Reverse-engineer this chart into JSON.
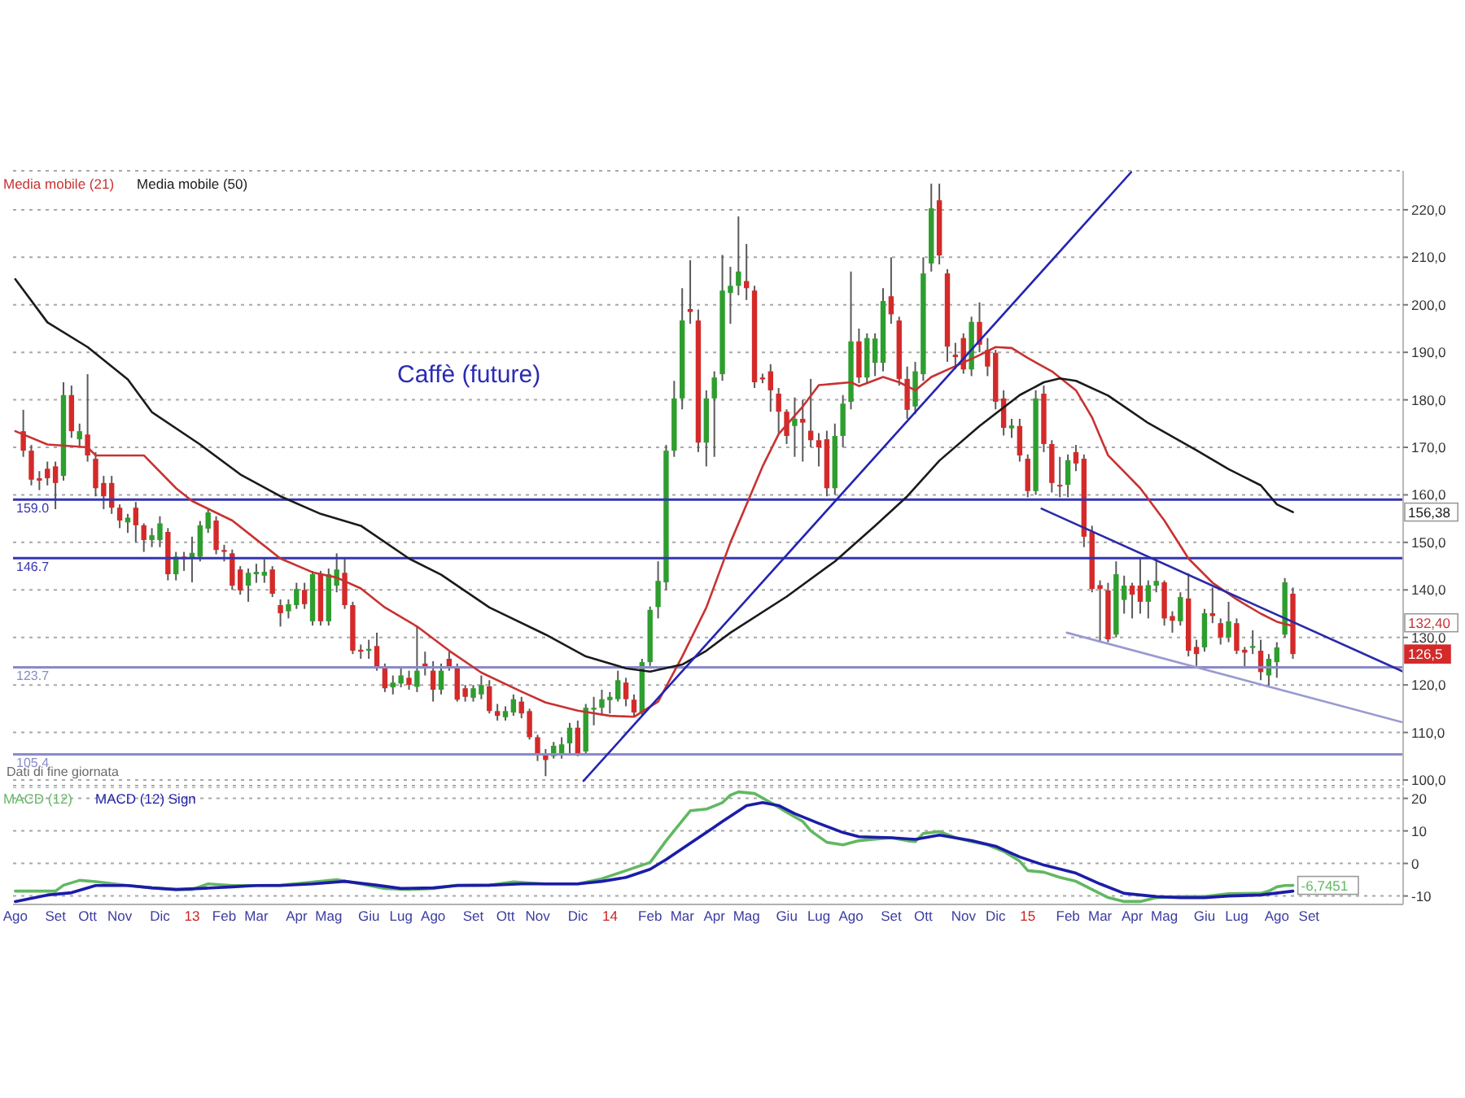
{
  "chart_data": [
    {
      "type": "candlestick",
      "title": "Caffè (future)",
      "x": [
        "2012-08-10",
        "2012-08-17",
        "2012-08-24",
        "2012-08-31",
        "2012-09-07",
        "2012-09-14",
        "2012-09-21",
        "2012-09-28",
        "2012-10-05",
        "2012-10-12",
        "2012-10-19",
        "2012-10-26",
        "2012-11-02",
        "2012-11-09",
        "2012-11-16",
        "2012-11-23",
        "2012-11-30",
        "2012-12-07",
        "2012-12-14",
        "2012-12-21",
        "2012-12-28",
        "2013-01-04",
        "2013-01-11",
        "2013-01-18",
        "2013-01-25",
        "2013-02-01",
        "2013-02-08",
        "2013-02-15",
        "2013-02-22",
        "2013-03-01",
        "2013-03-08",
        "2013-03-15",
        "2013-03-22",
        "2013-03-29",
        "2013-04-05",
        "2013-04-12",
        "2013-04-19",
        "2013-04-26",
        "2013-05-03",
        "2013-05-10",
        "2013-05-17",
        "2013-05-24",
        "2013-05-31",
        "2013-06-07",
        "2013-06-14",
        "2013-06-21",
        "2013-06-28",
        "2013-07-05",
        "2013-07-12",
        "2013-07-19",
        "2013-07-26",
        "2013-08-02",
        "2013-08-09",
        "2013-08-16",
        "2013-08-23",
        "2013-08-30",
        "2013-09-06",
        "2013-09-13",
        "2013-09-20",
        "2013-09-27",
        "2013-10-04",
        "2013-10-11",
        "2013-10-18",
        "2013-10-25",
        "2013-11-01",
        "2013-11-08",
        "2013-11-15",
        "2013-11-22",
        "2013-11-29",
        "2013-12-06",
        "2013-12-13",
        "2013-12-20",
        "2013-12-27",
        "2014-01-03",
        "2014-01-10",
        "2014-01-17",
        "2014-01-24",
        "2014-01-31",
        "2014-02-07",
        "2014-02-14",
        "2014-02-21",
        "2014-02-28",
        "2014-03-07",
        "2014-03-14",
        "2014-03-21",
        "2014-03-28",
        "2014-04-04",
        "2014-04-11",
        "2014-04-18",
        "2014-04-25",
        "2014-05-02",
        "2014-05-09",
        "2014-05-16",
        "2014-05-23",
        "2014-05-30",
        "2014-06-06",
        "2014-06-13",
        "2014-06-20",
        "2014-06-27",
        "2014-07-04",
        "2014-07-11",
        "2014-07-18",
        "2014-07-25",
        "2014-08-01",
        "2014-08-08",
        "2014-08-15",
        "2014-08-22",
        "2014-08-29",
        "2014-09-05",
        "2014-09-12",
        "2014-09-19",
        "2014-09-26",
        "2014-10-03",
        "2014-10-10",
        "2014-10-17",
        "2014-10-24",
        "2014-10-31",
        "2014-11-07",
        "2014-11-14",
        "2014-11-21",
        "2014-11-28",
        "2014-12-05",
        "2014-12-12",
        "2014-12-19",
        "2014-12-26",
        "2015-01-02",
        "2015-01-09",
        "2015-01-16",
        "2015-01-23",
        "2015-01-30",
        "2015-02-06",
        "2015-02-13",
        "2015-02-20",
        "2015-02-27",
        "2015-03-06",
        "2015-03-13",
        "2015-03-20",
        "2015-03-27",
        "2015-04-03",
        "2015-04-10",
        "2015-04-17",
        "2015-04-24",
        "2015-05-01",
        "2015-05-08",
        "2015-05-15",
        "2015-05-22",
        "2015-05-29",
        "2015-06-05",
        "2015-06-12",
        "2015-06-19",
        "2015-06-26",
        "2015-07-03",
        "2015-07-10",
        "2015-07-17",
        "2015-07-24",
        "2015-07-31",
        "2015-08-07",
        "2015-08-14",
        "2015-08-21"
      ],
      "ohlc": [
        [
          173.4,
          177.9,
          168,
          169.3
        ],
        [
          169.3,
          170.5,
          162,
          163.2
        ],
        [
          163.5,
          165,
          161,
          163.0
        ],
        [
          165.5,
          167,
          162,
          163.5
        ],
        [
          166,
          167,
          157,
          162.5
        ],
        [
          164,
          183.7,
          163,
          181
        ],
        [
          181,
          183,
          172,
          173.4
        ],
        [
          171.7,
          175,
          170,
          173.4
        ],
        [
          172.7,
          185.4,
          167,
          168.3
        ],
        [
          167.6,
          169,
          159.7,
          161.4
        ],
        [
          162.5,
          164,
          157,
          159.7
        ],
        [
          162.5,
          164,
          156,
          157.3
        ],
        [
          157.3,
          158,
          153,
          154.6
        ],
        [
          154.2,
          156,
          152,
          155.2
        ],
        [
          157.3,
          158.5,
          150,
          153.6
        ],
        [
          153.6,
          154,
          148,
          150.5
        ],
        [
          150.5,
          153,
          149,
          151.5
        ],
        [
          150.5,
          155.5,
          149,
          154
        ],
        [
          152.2,
          153,
          142,
          143.3
        ],
        [
          143.3,
          148,
          142,
          147
        ],
        [
          147,
          148,
          144,
          146.5
        ],
        [
          146.8,
          151.2,
          141.6,
          147.8
        ],
        [
          147,
          154.5,
          146,
          153.6
        ],
        [
          152.9,
          157,
          152,
          156.3
        ],
        [
          154.6,
          155.5,
          147.5,
          148.4
        ],
        [
          148.4,
          149.5,
          146,
          148
        ],
        [
          147.7,
          148.5,
          140,
          140.9
        ],
        [
          144.3,
          145,
          139,
          139.9
        ],
        [
          140.9,
          144.5,
          137.5,
          143.6
        ],
        [
          143.3,
          145.5,
          141.5,
          143.8
        ],
        [
          143,
          146.5,
          141.5,
          143.8
        ],
        [
          144.3,
          145,
          138.5,
          139.2
        ],
        [
          136.8,
          138,
          132.3,
          135.1
        ],
        [
          135.5,
          138,
          134,
          137
        ],
        [
          136.8,
          141.5,
          136,
          140.2
        ],
        [
          140,
          141.5,
          136,
          137
        ],
        [
          133.4,
          144,
          132.5,
          143.3
        ],
        [
          143.3,
          144,
          132.5,
          133.4
        ],
        [
          133.4,
          144.5,
          132.5,
          143.3
        ],
        [
          140.9,
          147.7,
          139.5,
          144.3
        ],
        [
          143.6,
          146.7,
          136,
          136.8
        ],
        [
          136.8,
          137.5,
          126.5,
          127.2
        ],
        [
          127.4,
          128.5,
          125.5,
          127
        ],
        [
          127.2,
          129.5,
          125.5,
          127.6
        ],
        [
          128.2,
          131,
          123,
          123.8
        ],
        [
          123.8,
          124.5,
          118.5,
          119.3
        ],
        [
          119.5,
          122,
          118,
          120.5
        ],
        [
          120.3,
          123.5,
          119.5,
          122
        ],
        [
          121.5,
          123,
          119,
          120
        ],
        [
          119.6,
          132.3,
          118.5,
          123
        ],
        [
          124.5,
          127,
          122,
          123.5
        ],
        [
          123,
          125,
          116.5,
          119
        ],
        [
          119,
          124.5,
          118,
          123
        ],
        [
          125.5,
          127,
          123,
          123.8
        ],
        [
          123.8,
          124.5,
          116.5,
          116.9
        ],
        [
          119.3,
          120,
          116.5,
          117.5
        ],
        [
          117.3,
          120,
          116.5,
          119.3
        ],
        [
          118,
          122,
          117,
          120
        ],
        [
          119.7,
          121,
          114,
          114.5
        ],
        [
          114.5,
          116,
          112.5,
          113.5
        ],
        [
          113.2,
          115.5,
          112.5,
          114.5
        ],
        [
          114.2,
          118,
          113.5,
          117
        ],
        [
          116.5,
          117.5,
          113,
          114
        ],
        [
          114.5,
          115,
          108.5,
          109
        ],
        [
          109,
          109.5,
          104,
          105.6
        ],
        [
          105.6,
          106.5,
          100.8,
          104.2
        ],
        [
          105,
          108,
          104.5,
          107.2
        ],
        [
          105.5,
          109,
          104.5,
          107.5
        ],
        [
          107.7,
          112,
          105.5,
          111
        ],
        [
          111,
          112.5,
          105,
          105.6
        ],
        [
          106,
          116,
          105.5,
          115.2
        ],
        [
          114.8,
          117.5,
          111.5,
          115.2
        ],
        [
          115.2,
          119,
          113.5,
          117
        ],
        [
          116.8,
          118.5,
          114,
          117.5
        ],
        [
          117,
          123,
          116.5,
          121
        ],
        [
          120.5,
          121.5,
          115.5,
          117
        ],
        [
          116.9,
          118,
          113.5,
          114.2
        ],
        [
          114.2,
          125.5,
          113.5,
          124.8
        ],
        [
          124.8,
          136.5,
          124,
          135.8
        ],
        [
          136.4,
          146,
          134,
          141.9
        ],
        [
          141.6,
          170.5,
          140,
          169.3
        ],
        [
          169.3,
          184,
          168,
          180.3
        ],
        [
          180.3,
          203.5,
          178,
          196.7
        ],
        [
          199.1,
          209.4,
          196,
          198.5
        ],
        [
          196.7,
          199,
          169,
          171
        ],
        [
          171,
          182,
          166,
          180.3
        ],
        [
          180.3,
          186,
          168,
          184.7
        ],
        [
          185.4,
          210.5,
          184,
          203
        ],
        [
          202.5,
          208,
          196,
          204
        ],
        [
          204,
          218.6,
          202,
          207
        ],
        [
          205,
          212.8,
          201,
          203.5
        ],
        [
          203,
          204,
          182.5,
          183.7
        ],
        [
          184.7,
          185.5,
          183.5,
          184.3
        ],
        [
          186,
          187.5,
          177.5,
          182
        ],
        [
          181.3,
          182.5,
          173,
          177.5
        ],
        [
          177.5,
          178,
          170.7,
          172.4
        ],
        [
          174.5,
          180.5,
          168,
          176
        ],
        [
          176,
          180,
          167,
          175.2
        ],
        [
          173.5,
          184.4,
          170,
          171.5
        ],
        [
          171.5,
          173,
          166,
          170
        ],
        [
          171.7,
          173.5,
          159.7,
          161.4
        ],
        [
          161.4,
          175,
          160,
          172.4
        ],
        [
          172.4,
          181,
          170,
          179.2
        ],
        [
          179.6,
          207,
          178,
          192.3
        ],
        [
          192.3,
          195,
          183.5,
          184.7
        ],
        [
          184.7,
          194,
          183.5,
          193
        ],
        [
          187.8,
          194,
          185,
          192.9
        ],
        [
          187.8,
          203.5,
          186,
          200.8
        ],
        [
          201.8,
          210,
          196,
          198
        ],
        [
          196.7,
          197.5,
          183,
          184.4
        ],
        [
          184.4,
          187,
          176,
          177.9
        ],
        [
          178.6,
          188,
          177,
          186
        ],
        [
          185.4,
          210,
          184,
          206.6
        ],
        [
          208.7,
          225.5,
          207,
          220.3
        ],
        [
          222,
          225.5,
          208.5,
          210.4
        ],
        [
          206.6,
          207.5,
          188,
          191.2
        ],
        [
          189.5,
          192,
          186.5,
          189
        ],
        [
          193,
          194,
          185.5,
          186.4
        ],
        [
          186.4,
          197.5,
          185,
          196.4
        ],
        [
          196.4,
          200.5,
          190,
          191.6
        ],
        [
          190.5,
          193,
          185,
          187
        ],
        [
          189.9,
          190.5,
          178,
          179.6
        ],
        [
          180.3,
          182,
          172.5,
          174.1
        ],
        [
          174,
          176,
          172,
          174.6
        ],
        [
          174.5,
          176,
          167,
          168.3
        ],
        [
          167.6,
          168.5,
          159.5,
          160.8
        ],
        [
          160.8,
          182,
          160,
          180.3
        ],
        [
          181.3,
          183,
          169,
          170.7
        ],
        [
          170.7,
          171.5,
          160.5,
          162.5
        ],
        [
          162.1,
          168,
          159.5,
          161.8
        ],
        [
          162.1,
          168.5,
          159.5,
          167.3
        ],
        [
          169,
          170.5,
          165,
          166.6
        ],
        [
          167.6,
          168.5,
          149,
          151.2
        ],
        [
          152.2,
          153.5,
          139.5,
          140.2
        ],
        [
          141,
          142,
          128.9,
          140.2
        ],
        [
          139.9,
          141.5,
          129,
          129.6
        ],
        [
          130.6,
          146,
          130,
          143.3
        ],
        [
          137.9,
          143,
          135,
          140.9
        ],
        [
          140.9,
          141.5,
          134,
          139
        ],
        [
          140.9,
          146.7,
          135,
          137.5
        ],
        [
          137.5,
          142,
          134,
          141
        ],
        [
          140.9,
          146.5,
          139.5,
          141.9
        ],
        [
          141.6,
          142,
          132.5,
          134
        ],
        [
          134.5,
          135.5,
          131,
          133.5
        ],
        [
          133.4,
          139.5,
          132.5,
          138.5
        ],
        [
          138.2,
          143.5,
          126,
          127.2
        ],
        [
          128,
          129.5,
          124,
          126.5
        ],
        [
          127.9,
          136,
          127,
          135.1
        ],
        [
          135.1,
          140.5,
          133,
          134.5
        ],
        [
          133,
          134,
          128.5,
          130
        ],
        [
          130,
          137.5,
          129,
          133.4
        ],
        [
          133,
          134,
          126.5,
          127.2
        ],
        [
          127.4,
          128,
          123.5,
          126.8
        ],
        [
          127.8,
          131.5,
          126.5,
          128.2
        ],
        [
          127.2,
          129.5,
          121,
          122.7
        ],
        [
          122,
          126.5,
          119.8,
          125.5
        ],
        [
          124.8,
          129,
          121.5,
          127.9
        ],
        [
          130.6,
          142.5,
          130,
          141.6
        ],
        [
          139.2,
          140.5,
          125.5,
          126.5
        ]
      ],
      "colors": [
        "#d42a2a",
        "#d42a2a",
        "#d42a2a",
        "#d42a2a",
        "#d42a2a",
        "#2e9e2e",
        "#d42a2a",
        "#2e9e2e",
        "#d42a2a",
        "#d42a2a",
        "#d42a2a",
        "#d42a2a",
        "#d42a2a",
        "#2e9e2e",
        "#d42a2a",
        "#d42a2a",
        "#2e9e2e",
        "#2e9e2e",
        "#d42a2a",
        "#2e9e2e",
        "#d42a2a",
        "#2e9e2e",
        "#2e9e2e",
        "#2e9e2e",
        "#d42a2a",
        "#d42a2a",
        "#d42a2a",
        "#d42a2a",
        "#2e9e2e",
        "#2e9e2e",
        "#2e9e2e",
        "#d42a2a",
        "#d42a2a",
        "#2e9e2e",
        "#2e9e2e",
        "#d42a2a",
        "#2e9e2e",
        "#d42a2a",
        "#2e9e2e",
        "#2e9e2e",
        "#d42a2a",
        "#d42a2a",
        "#d42a2a",
        "#2e9e2e",
        "#d42a2a",
        "#d42a2a",
        "#2e9e2e",
        "#2e9e2e",
        "#d42a2a",
        "#2e9e2e",
        "#d42a2a",
        "#d42a2a",
        "#2e9e2e",
        "#d42a2a",
        "#d42a2a",
        "#d42a2a",
        "#2e9e2e",
        "#2e9e2e",
        "#d42a2a",
        "#d42a2a",
        "#2e9e2e",
        "#2e9e2e",
        "#d42a2a",
        "#d42a2a",
        "#d42a2a",
        "#d42a2a",
        "#2e9e2e",
        "#2e9e2e",
        "#2e9e2e",
        "#d42a2a",
        "#2e9e2e",
        "#2e9e2e",
        "#2e9e2e",
        "#2e9e2e",
        "#2e9e2e",
        "#d42a2a",
        "#d42a2a",
        "#2e9e2e",
        "#2e9e2e",
        "#2e9e2e",
        "#2e9e2e",
        "#2e9e2e",
        "#2e9e2e",
        "#d42a2a",
        "#d42a2a",
        "#2e9e2e",
        "#2e9e2e",
        "#2e9e2e",
        "#2e9e2e",
        "#2e9e2e",
        "#d42a2a",
        "#d42a2a",
        "#d42a2a",
        "#d42a2a",
        "#d42a2a",
        "#d42a2a",
        "#2e9e2e",
        "#d42a2a",
        "#d42a2a",
        "#d42a2a",
        "#d42a2a",
        "#2e9e2e",
        "#2e9e2e",
        "#2e9e2e",
        "#d42a2a",
        "#2e9e2e",
        "#2e9e2e",
        "#2e9e2e",
        "#d42a2a",
        "#d42a2a",
        "#d42a2a",
        "#2e9e2e",
        "#2e9e2e",
        "#2e9e2e",
        "#d42a2a",
        "#d42a2a",
        "#d42a2a",
        "#d42a2a",
        "#2e9e2e",
        "#d42a2a",
        "#d42a2a",
        "#d42a2a",
        "#d42a2a",
        "#2e9e2e",
        "#d42a2a",
        "#d42a2a",
        "#2e9e2e",
        "#d42a2a",
        "#d42a2a",
        "#d42a2a",
        "#2e9e2e",
        "#d42a2a",
        "#d42a2a",
        "#d42a2a",
        "#d42a2a",
        "#d42a2a",
        "#2e9e2e",
        "#2e9e2e",
        "#d42a2a",
        "#d42a2a",
        "#2e9e2e",
        "#2e9e2e",
        "#d42a2a",
        "#d42a2a",
        "#2e9e2e",
        "#d42a2a",
        "#d42a2a",
        "#2e9e2e",
        "#d42a2a",
        "#d42a2a",
        "#2e9e2e",
        "#d42a2a",
        "#d42a2a",
        "#2e9e2e",
        "#d42a2a",
        "#2e9e2e",
        "#2e9e2e",
        "#2e9e2e",
        "#d42a2a"
      ],
      "series": [
        {
          "name": "Media mobile (21)",
          "type": "line",
          "color": "#c83232",
          "x": [
            "2012-08-03",
            "2012-08-31",
            "2012-10-05",
            "2012-10-12",
            "2012-11-23",
            "2012-12-21",
            "2013-01-04",
            "2013-02-08",
            "2013-03-01",
            "2013-03-22",
            "2013-04-19",
            "2013-05-10",
            "2013-05-31",
            "2013-06-21",
            "2013-07-19",
            "2013-08-16",
            "2013-09-13",
            "2013-10-18",
            "2013-11-08",
            "2013-12-06",
            "2014-01-03",
            "2014-01-24",
            "2014-02-14",
            "2014-03-07",
            "2014-03-28",
            "2014-04-18",
            "2014-05-02",
            "2014-05-16",
            "2014-05-30",
            "2014-06-20",
            "2014-07-04",
            "2014-08-01",
            "2014-08-08",
            "2014-08-29",
            "2014-09-12",
            "2014-09-26",
            "2014-10-10",
            "2014-10-31",
            "2014-11-21",
            "2014-12-05",
            "2014-12-19",
            "2015-01-02",
            "2015-01-23",
            "2015-02-13",
            "2015-02-27",
            "2015-03-13",
            "2015-04-10",
            "2015-05-01",
            "2015-05-22",
            "2015-06-12",
            "2015-07-03",
            "2015-07-24",
            "2015-08-07",
            "2015-08-21"
          ],
          "values": [
            173.4,
            170.6,
            170,
            168.3,
            168.3,
            161.4,
            158.7,
            154.6,
            150.6,
            146.6,
            143.7,
            142.6,
            140.3,
            136.3,
            132.3,
            127.2,
            122.6,
            118.6,
            116.3,
            114.6,
            113.5,
            113.3,
            116.5,
            126,
            136.3,
            150,
            158,
            166,
            172.8,
            178.6,
            183.1,
            183.7,
            182.9,
            184.8,
            183.7,
            182,
            184.8,
            187.1,
            189.4,
            191.1,
            190.9,
            188.8,
            186,
            182,
            176.3,
            168.3,
            161.4,
            154.6,
            146.6,
            141.5,
            138,
            135,
            133.3,
            132.4
          ]
        },
        {
          "name": "Media mobile (50)",
          "type": "line",
          "color": "#1a1a1a",
          "x": [
            "2012-08-03",
            "2012-08-31",
            "2012-10-05",
            "2012-11-09",
            "2012-11-30",
            "2013-01-11",
            "2013-02-15",
            "2013-03-22",
            "2013-04-26",
            "2013-05-31",
            "2013-07-12",
            "2013-08-09",
            "2013-09-20",
            "2013-11-08",
            "2013-12-13",
            "2014-01-17",
            "2014-02-07",
            "2014-03-07",
            "2014-03-28",
            "2014-04-18",
            "2014-06-06",
            "2014-07-18",
            "2014-08-22",
            "2014-09-19",
            "2014-10-17",
            "2014-11-21",
            "2014-12-26",
            "2015-01-16",
            "2015-01-30",
            "2015-02-13",
            "2015-03-13",
            "2015-04-17",
            "2015-05-29",
            "2015-06-26",
            "2015-07-24",
            "2015-08-07",
            "2015-08-21"
          ],
          "values": [
            205.4,
            196.3,
            191.1,
            184.3,
            177.4,
            170.6,
            164.3,
            159.7,
            156,
            153.5,
            146.6,
            143.2,
            136.3,
            130.6,
            126,
            123.5,
            122.8,
            124.3,
            127.2,
            131,
            138.6,
            146,
            153.5,
            159.7,
            167.2,
            174.5,
            181,
            183.7,
            184.5,
            184,
            180.9,
            175.1,
            169.4,
            165.4,
            162,
            158,
            156.38
          ]
        },
        {
          "type": "line",
          "color": "#2424b4",
          "x": [
            "2013-12-11",
            "2015-04-02"
          ],
          "values": [
            99.8,
            227.9
          ]
        },
        {
          "type": "line",
          "color": "#2a2aa8",
          "x": [
            "2015-01-14",
            "2015-11-25"
          ],
          "values": [
            157.1,
            122.8
          ]
        },
        {
          "type": "line",
          "color": "#9a9ad0",
          "x": [
            "2015-02-05",
            "2015-11-25"
          ],
          "values": [
            131,
            112.1
          ]
        }
      ],
      "ref_lines": [
        {
          "axis": "y",
          "value": 159.0,
          "label": "159.0",
          "color": "#3535b0"
        },
        {
          "axis": "y",
          "value": 146.7,
          "label": "146.7",
          "color": "#3535b0"
        },
        {
          "axis": "y",
          "value": 123.7,
          "label": "123.7",
          "color": "#8a8ac8"
        },
        {
          "axis": "y",
          "value": 105.4,
          "label": "105.4",
          "color": "#8a8ac8"
        }
      ],
      "annotations": [
        "Dati di fine giornata",
        {
          "text": "156,38",
          "y": 156.38
        },
        {
          "text": "132,40",
          "y": 132.4
        },
        {
          "text": "126,5",
          "y": 126.5
        }
      ],
      "xlim": [
        "2012-08-01",
        "2015-11-25"
      ],
      "ylim": [
        98.8,
        228.2
      ],
      "yticks": [
        {
          "value": 100,
          "label": "100,0"
        },
        {
          "value": 110,
          "label": "110,0"
        },
        {
          "value": 120,
          "label": "120,0"
        },
        {
          "value": 130,
          "label": "130,0"
        },
        {
          "value": 140,
          "label": "140,0"
        },
        {
          "value": 150,
          "label": "150,0"
        },
        {
          "value": 160,
          "label": "160,0"
        },
        {
          "value": 170,
          "label": "170,0"
        },
        {
          "value": 180,
          "label": "180,0"
        },
        {
          "value": 190,
          "label": "190,0"
        },
        {
          "value": 200,
          "label": "200,0"
        },
        {
          "value": 210,
          "label": "210,0"
        },
        {
          "value": 220,
          "label": "220,0"
        }
      ],
      "tick_labels": "y",
      "grid": "y",
      "legend": "top left"
    },
    {
      "type": "line",
      "series": [
        {
          "name": "MACD (12)",
          "color": "#62b862",
          "x": [
            "2012-08-03",
            "2012-09-07",
            "2012-09-14",
            "2012-09-28",
            "2012-10-12",
            "2012-11-09",
            "2012-11-30",
            "2012-12-21",
            "2013-01-04",
            "2013-01-18",
            "2013-02-08",
            "2013-03-01",
            "2013-03-22",
            "2013-04-12",
            "2013-05-10",
            "2013-05-31",
            "2013-06-21",
            "2013-07-12",
            "2013-08-02",
            "2013-08-23",
            "2013-09-20",
            "2013-10-11",
            "2013-11-08",
            "2013-12-06",
            "2013-12-27",
            "2014-01-17",
            "2014-02-07",
            "2014-02-21",
            "2014-03-14",
            "2014-03-28",
            "2014-04-11",
            "2014-04-18",
            "2014-04-25",
            "2014-05-09",
            "2014-05-23",
            "2014-06-06",
            "2014-06-20",
            "2014-06-27",
            "2014-07-11",
            "2014-07-25",
            "2014-08-08",
            "2014-08-22",
            "2014-09-05",
            "2014-09-19",
            "2014-09-26",
            "2014-10-03",
            "2014-10-17",
            "2014-10-31",
            "2014-11-14",
            "2014-11-28",
            "2014-12-12",
            "2014-12-26",
            "2015-01-02",
            "2015-01-16",
            "2015-01-30",
            "2015-02-13",
            "2015-02-27",
            "2015-03-13",
            "2015-03-27",
            "2015-04-10",
            "2015-04-24",
            "2015-05-15",
            "2015-06-05",
            "2015-06-26",
            "2015-07-24",
            "2015-07-31",
            "2015-08-07",
            "2015-08-14",
            "2015-08-21"
          ],
          "values": [
            -8.5,
            -8.5,
            -6.7,
            -5.2,
            -5.6,
            -6.8,
            -7.5,
            -8,
            -8,
            -6.3,
            -6.8,
            -6.8,
            -6.7,
            -6,
            -5,
            -6.3,
            -7.7,
            -8,
            -7.7,
            -6.7,
            -6.7,
            -5.7,
            -6.3,
            -6.3,
            -4.7,
            -2.2,
            0.3,
            7,
            16.2,
            16.7,
            18.7,
            21,
            22,
            21.5,
            18.7,
            15.7,
            12.9,
            10,
            6.5,
            5.7,
            7,
            7.5,
            7.9,
            7,
            6.7,
            9.2,
            9.8,
            7.9,
            6.7,
            5.7,
            3.7,
            0.7,
            -2.2,
            -2.7,
            -4.3,
            -5.5,
            -8,
            -10.5,
            -11.7,
            -11.7,
            -10.5,
            -10.2,
            -10.2,
            -9.3,
            -9.2,
            -8.5,
            -7.2,
            -6.8,
            -6.7451
          ]
        },
        {
          "name": "MACD (12) Sign",
          "color": "#1c1ca8",
          "x": [
            "2012-08-03",
            "2012-08-31",
            "2012-09-21",
            "2012-10-12",
            "2012-11-09",
            "2012-11-30",
            "2012-12-21",
            "2013-01-11",
            "2013-02-08",
            "2013-03-01",
            "2013-03-22",
            "2013-04-19",
            "2013-05-17",
            "2013-06-14",
            "2013-07-05",
            "2013-08-02",
            "2013-08-23",
            "2013-09-20",
            "2013-10-18",
            "2013-12-06",
            "2013-12-27",
            "2014-01-17",
            "2014-02-07",
            "2014-02-21",
            "2014-03-14",
            "2014-03-28",
            "2014-04-11",
            "2014-04-18",
            "2014-05-02",
            "2014-05-16",
            "2014-05-30",
            "2014-06-13",
            "2014-07-04",
            "2014-07-25",
            "2014-08-08",
            "2014-09-05",
            "2014-09-26",
            "2014-10-17",
            "2014-11-14",
            "2014-12-05",
            "2014-12-26",
            "2015-01-16",
            "2015-02-13",
            "2015-03-06",
            "2015-03-27",
            "2015-04-24",
            "2015-05-15",
            "2015-06-05",
            "2015-06-26",
            "2015-07-24",
            "2015-08-21"
          ],
          "values": [
            -11.7,
            -9.7,
            -9,
            -6.8,
            -6.8,
            -7.5,
            -8,
            -7.7,
            -7.2,
            -6.8,
            -6.8,
            -6.3,
            -5.5,
            -6.7,
            -7.7,
            -7.5,
            -6.8,
            -6.7,
            -6.3,
            -6.3,
            -5.5,
            -4.3,
            -1.8,
            1.2,
            6.2,
            9.5,
            12.9,
            14.5,
            17.8,
            18.7,
            17.8,
            15.3,
            12.3,
            9.5,
            8.2,
            7.9,
            7.4,
            8.7,
            7,
            5.3,
            2,
            -0.5,
            -3,
            -6.3,
            -9.2,
            -10.2,
            -10.5,
            -10.5,
            -10,
            -9.7,
            -8.5
          ]
        }
      ],
      "annotations": [
        {
          "text": "-6,7451",
          "x": "2015-08-21",
          "y": -6.7451
        }
      ],
      "xlim": [
        "2012-08-01",
        "2015-11-25"
      ],
      "xticks": [
        {
          "value": "2012-08-03",
          "label": "Ago"
        },
        {
          "value": "2012-09-07",
          "label": "Set"
        },
        {
          "value": "2012-10-05",
          "label": "Ott"
        },
        {
          "value": "2012-11-02",
          "label": "Nov"
        },
        {
          "value": "2012-12-07",
          "label": "Dic"
        },
        {
          "value": "2013-01-04",
          "label": "13"
        },
        {
          "value": "2013-02-01",
          "label": "Feb"
        },
        {
          "value": "2013-03-01",
          "label": "Mar"
        },
        {
          "value": "2013-04-05",
          "label": "Apr"
        },
        {
          "value": "2013-05-03",
          "label": "Mag"
        },
        {
          "value": "2013-06-07",
          "label": "Giu"
        },
        {
          "value": "2013-07-05",
          "label": "Lug"
        },
        {
          "value": "2013-08-02",
          "label": "Ago"
        },
        {
          "value": "2013-09-06",
          "label": "Set"
        },
        {
          "value": "2013-10-04",
          "label": "Ott"
        },
        {
          "value": "2013-11-01",
          "label": "Nov"
        },
        {
          "value": "2013-12-06",
          "label": "Dic"
        },
        {
          "value": "2014-01-03",
          "label": "14"
        },
        {
          "value": "2014-02-07",
          "label": "Feb"
        },
        {
          "value": "2014-03-07",
          "label": "Mar"
        },
        {
          "value": "2014-04-04",
          "label": "Apr"
        },
        {
          "value": "2014-05-02",
          "label": "Mag"
        },
        {
          "value": "2014-06-06",
          "label": "Giu"
        },
        {
          "value": "2014-07-04",
          "label": "Lug"
        },
        {
          "value": "2014-08-01",
          "label": "Ago"
        },
        {
          "value": "2014-09-05",
          "label": "Set"
        },
        {
          "value": "2014-10-03",
          "label": "Ott"
        },
        {
          "value": "2014-11-07",
          "label": "Nov"
        },
        {
          "value": "2014-12-05",
          "label": "Dic"
        },
        {
          "value": "2015-01-02",
          "label": "15"
        },
        {
          "value": "2015-02-06",
          "label": "Feb"
        },
        {
          "value": "2015-03-06",
          "label": "Mar"
        },
        {
          "value": "2015-04-03",
          "label": "Apr"
        },
        {
          "value": "2015-05-01",
          "label": "Mag"
        },
        {
          "value": "2015-06-05",
          "label": "Giu"
        },
        {
          "value": "2015-07-03",
          "label": "Lug"
        },
        {
          "value": "2015-08-07",
          "label": "Ago"
        },
        {
          "value": "2015-09-04",
          "label": "Set"
        }
      ],
      "ylim": [
        -12.6,
        23.4
      ],
      "yticks": [
        20,
        10,
        0,
        -10
      ],
      "grid": "y",
      "legend": "top left"
    }
  ]
}
